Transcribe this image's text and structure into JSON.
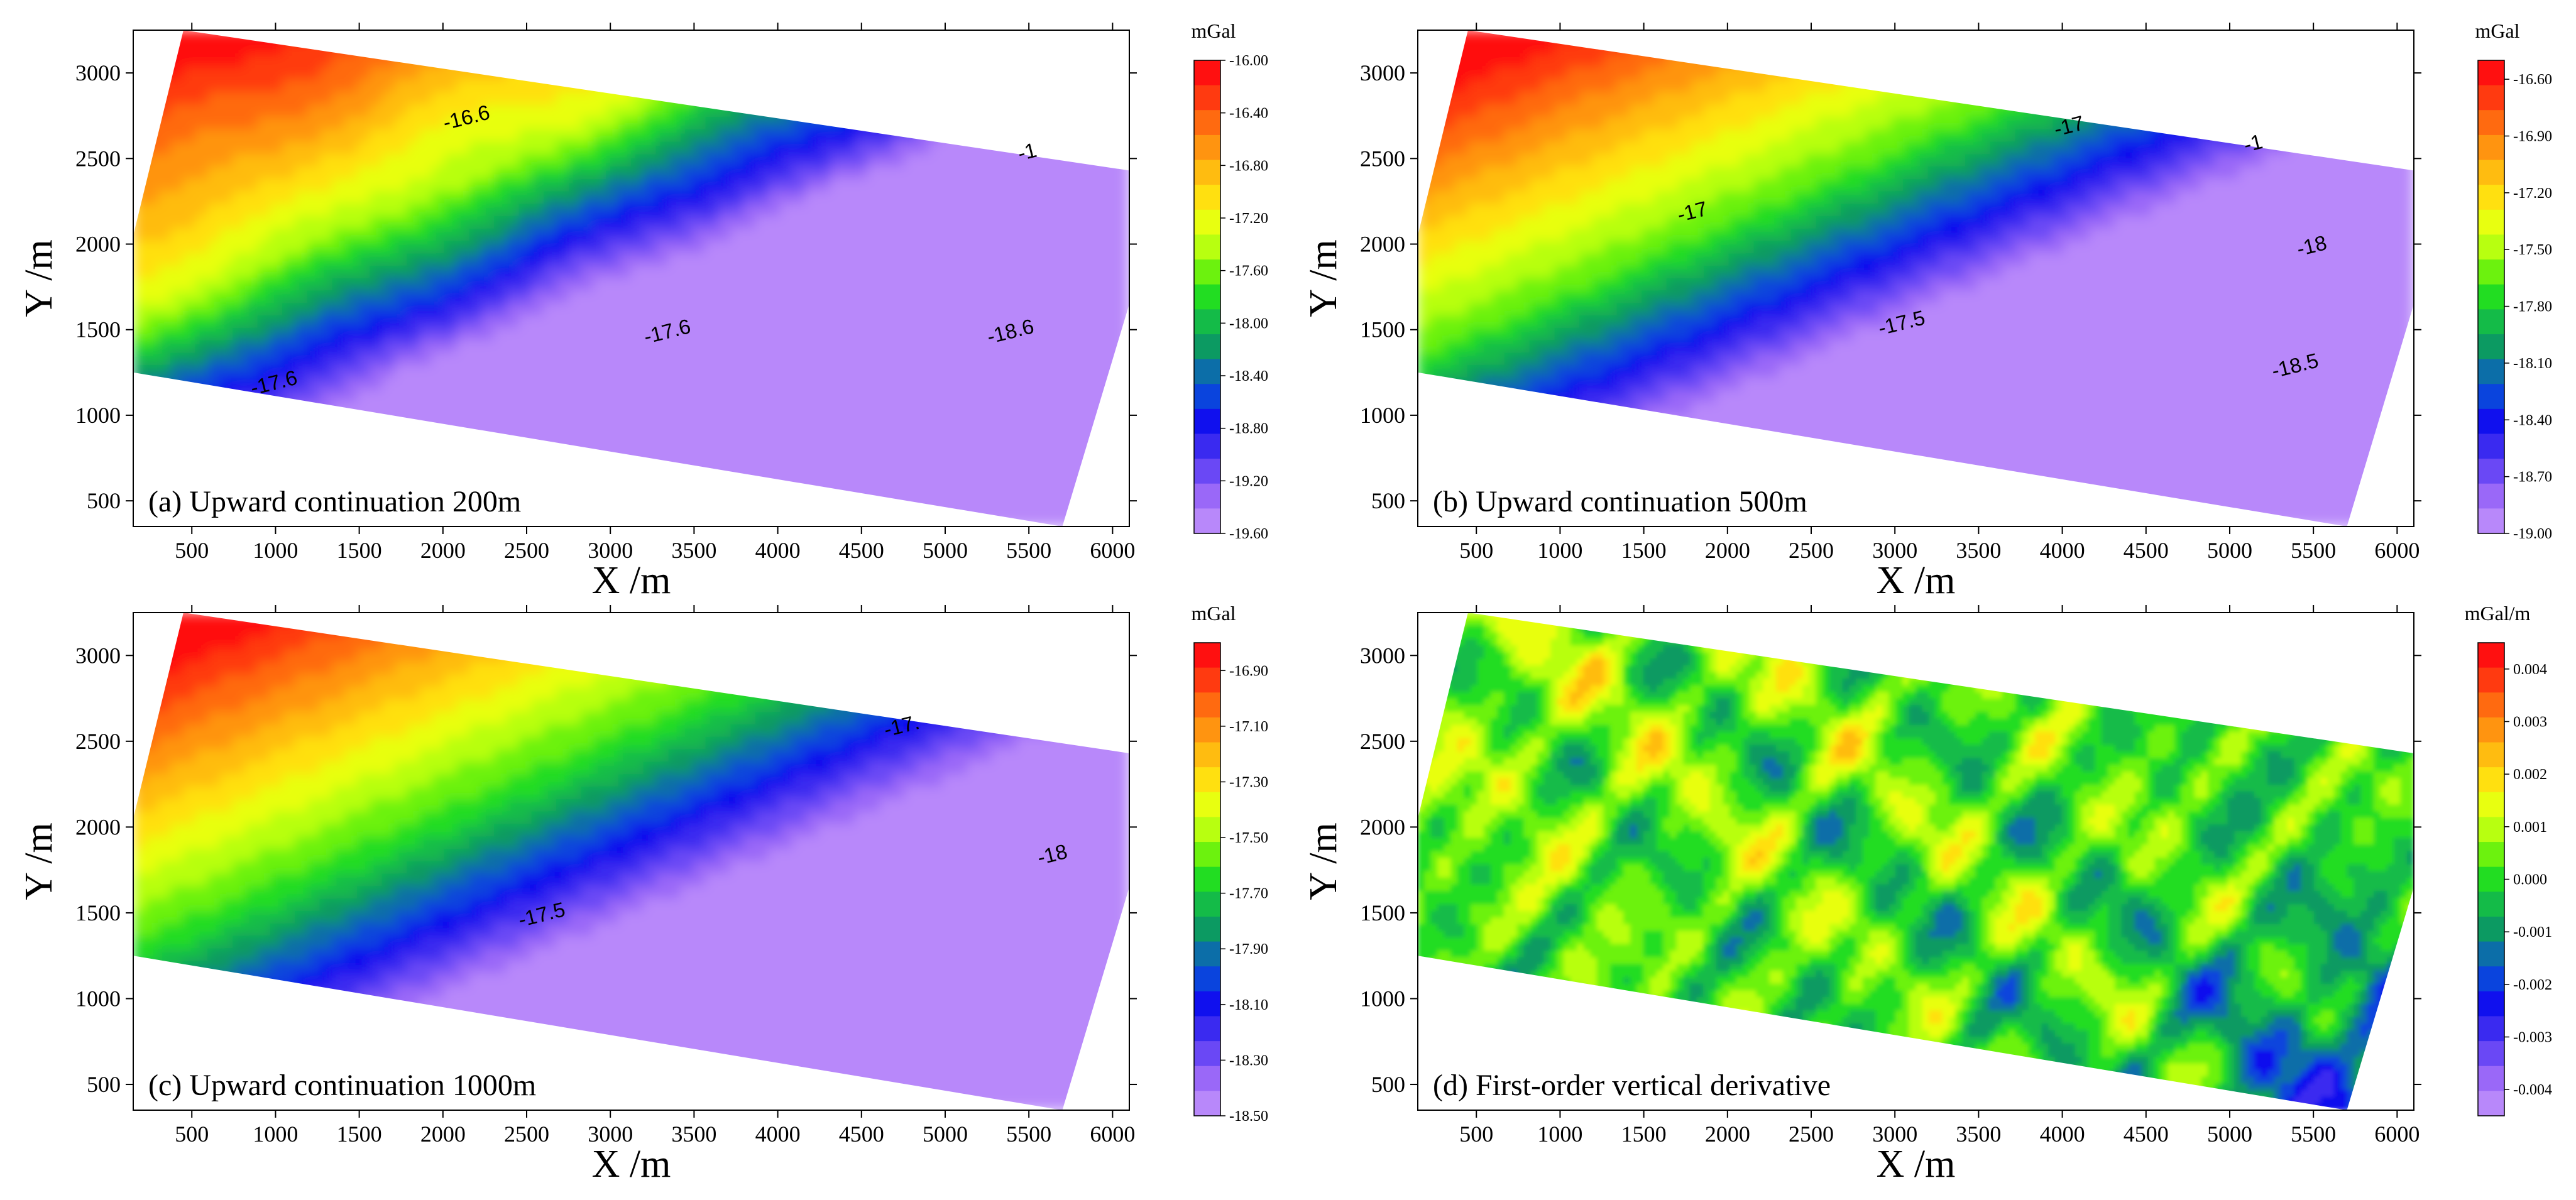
{
  "figure": {
    "chart_data": [
      {
        "type": "heatmap",
        "title": "(a) Upward continuation 200m",
        "xlabel": "X /m",
        "ylabel": "Y /m",
        "xlim": [
          150,
          6100
        ],
        "ylim": [
          350,
          3250
        ],
        "xticks": [
          "500",
          "1000",
          "1500",
          "2000",
          "2500",
          "3000",
          "3500",
          "4000",
          "4500",
          "5000",
          "5500",
          "6000"
        ],
        "yticks": [
          "500",
          "1000",
          "1500",
          "2000",
          "2500",
          "3000"
        ],
        "colorbar": {
          "unit": "mGal",
          "labels": [
            "-16.00",
            "-16.40",
            "-16.80",
            "-17.20",
            "-17.60",
            "-18.00",
            "-18.40",
            "-18.80",
            "-19.20",
            "-19.60"
          ],
          "range": [
            -16.0,
            -19.6
          ]
        },
        "contour_labels": [
          {
            "text": "-16.6",
            "x": 2150,
            "y": 2700
          },
          {
            "text": "-17.6",
            "x": 3350,
            "y": 1450
          },
          {
            "text": "-17.6",
            "x": 1000,
            "y": 1150
          },
          {
            "text": "-18.6",
            "x": 5400,
            "y": 1450
          },
          {
            "text": "-1",
            "x": 5500,
            "y": 2500
          }
        ]
      },
      {
        "type": "heatmap",
        "title": "(b) Upward continuation 500m",
        "xlabel": "X /m",
        "ylabel": "Y /m",
        "xlim": [
          150,
          6100
        ],
        "ylim": [
          350,
          3250
        ],
        "xticks": [
          "500",
          "1000",
          "1500",
          "2000",
          "2500",
          "3000",
          "3500",
          "4000",
          "4500",
          "5000",
          "5500",
          "6000"
        ],
        "yticks": [
          "500",
          "1000",
          "1500",
          "2000",
          "2500",
          "3000"
        ],
        "colorbar": {
          "unit": "mGal",
          "labels": [
            "-16.60",
            "-16.90",
            "-17.20",
            "-17.50",
            "-17.80",
            "-18.10",
            "-18.40",
            "-18.70",
            "-19.00"
          ],
          "range": [
            -16.5,
            -19.0
          ]
        },
        "contour_labels": [
          {
            "text": "-17",
            "x": 1800,
            "y": 2150
          },
          {
            "text": "-17",
            "x": 4050,
            "y": 2650
          },
          {
            "text": "-17.5",
            "x": 3050,
            "y": 1500
          },
          {
            "text": "-18",
            "x": 5500,
            "y": 1950
          },
          {
            "text": "-18.5",
            "x": 5400,
            "y": 1250
          },
          {
            "text": "-1",
            "x": 5150,
            "y": 2550
          }
        ]
      },
      {
        "type": "heatmap",
        "title": "(c) Upward continuation 1000m",
        "xlabel": "X /m",
        "ylabel": "Y /m",
        "xlim": [
          150,
          6100
        ],
        "ylim": [
          350,
          3250
        ],
        "xticks": [
          "500",
          "1000",
          "1500",
          "2000",
          "2500",
          "3000",
          "3500",
          "4000",
          "4500",
          "5000",
          "5500",
          "6000"
        ],
        "yticks": [
          "500",
          "1000",
          "1500",
          "2000",
          "2500",
          "3000"
        ],
        "colorbar": {
          "unit": "mGal",
          "labels": [
            "-16.90",
            "-17.10",
            "-17.30",
            "-17.50",
            "-17.70",
            "-17.90",
            "-18.10",
            "-18.30",
            "-18.50"
          ],
          "range": [
            -16.8,
            -18.5
          ]
        },
        "contour_labels": [
          {
            "text": "-17.5",
            "x": 2600,
            "y": 1450
          },
          {
            "text": "-17.",
            "x": 4750,
            "y": 2550
          },
          {
            "text": "-18",
            "x": 5650,
            "y": 1800
          }
        ]
      },
      {
        "type": "heatmap",
        "title": "(d) First-order vertical derivative",
        "xlabel": "X /m",
        "ylabel": "Y /m",
        "xlim": [
          150,
          6100
        ],
        "ylim": [
          350,
          3250
        ],
        "xticks": [
          "500",
          "1000",
          "1500",
          "2000",
          "2500",
          "3000",
          "3500",
          "4000",
          "4500",
          "5000",
          "5500",
          "6000"
        ],
        "yticks": [
          "500",
          "1000",
          "1500",
          "2000",
          "2500",
          "3000"
        ],
        "colorbar": {
          "unit": "mGal/m",
          "labels": [
            "0.004",
            "0.003",
            "0.002",
            "0.001",
            "0.000",
            "-0.001",
            "-0.002",
            "-0.003",
            "-0.004"
          ],
          "range": [
            0.0045,
            -0.0045
          ]
        },
        "contour_labels": []
      }
    ]
  },
  "colors": {
    "ramp": [
      "#ff1010",
      "#ff3a10",
      "#ff6a10",
      "#ff9410",
      "#ffbc10",
      "#ffe010",
      "#e8ff10",
      "#b8ff10",
      "#6cf20e",
      "#22dd22",
      "#14bb48",
      "#0c9a62",
      "#0c6ea8",
      "#0a44dd",
      "#1010ee",
      "#3a2af0",
      "#6a48f5",
      "#9a68f8",
      "#b888fa"
    ]
  }
}
